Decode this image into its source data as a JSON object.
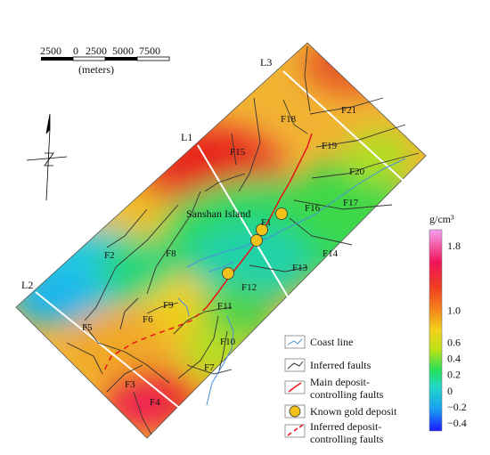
{
  "scale_bar": {
    "ticks": [
      "2500",
      "0",
      "2500",
      "5000",
      "7500"
    ],
    "unit": "(meters)"
  },
  "profiles": [
    "L1",
    "L2",
    "L3"
  ],
  "place": "Sanshan Island",
  "faults": [
    "F1",
    "F2",
    "F3",
    "F4",
    "F5",
    "F6",
    "F7",
    "F8",
    "F9",
    "F10",
    "F11",
    "F12",
    "F13",
    "F14",
    "F15",
    "F16",
    "F17",
    "F18",
    "F19",
    "F20",
    "F21"
  ],
  "colorbar": {
    "unit": "g/cm³",
    "ticks": [
      "1.8",
      "1.0",
      "0.6",
      "0.4",
      "0.2",
      "0",
      "−0.2",
      "−0.4"
    ],
    "values": [
      1.8,
      1.0,
      0.6,
      0.4,
      0.2,
      0,
      -0.2,
      -0.4
    ]
  },
  "legend": [
    {
      "key": "coast",
      "text": [
        "Coast line"
      ]
    },
    {
      "key": "inferred",
      "text": [
        "Inferred faults"
      ]
    },
    {
      "key": "main",
      "text": [
        "Main deposit-",
        "controlling faults"
      ]
    },
    {
      "key": "gold",
      "text": [
        "Known gold deposit"
      ]
    },
    {
      "key": "inferred_main",
      "text": [
        "Inferred deposit-",
        "controlling faults"
      ]
    }
  ],
  "colors": {
    "coast": "#4a90d9",
    "fault": "#333333",
    "main_fault": "#e8141b",
    "gold": "#f2c21b"
  }
}
